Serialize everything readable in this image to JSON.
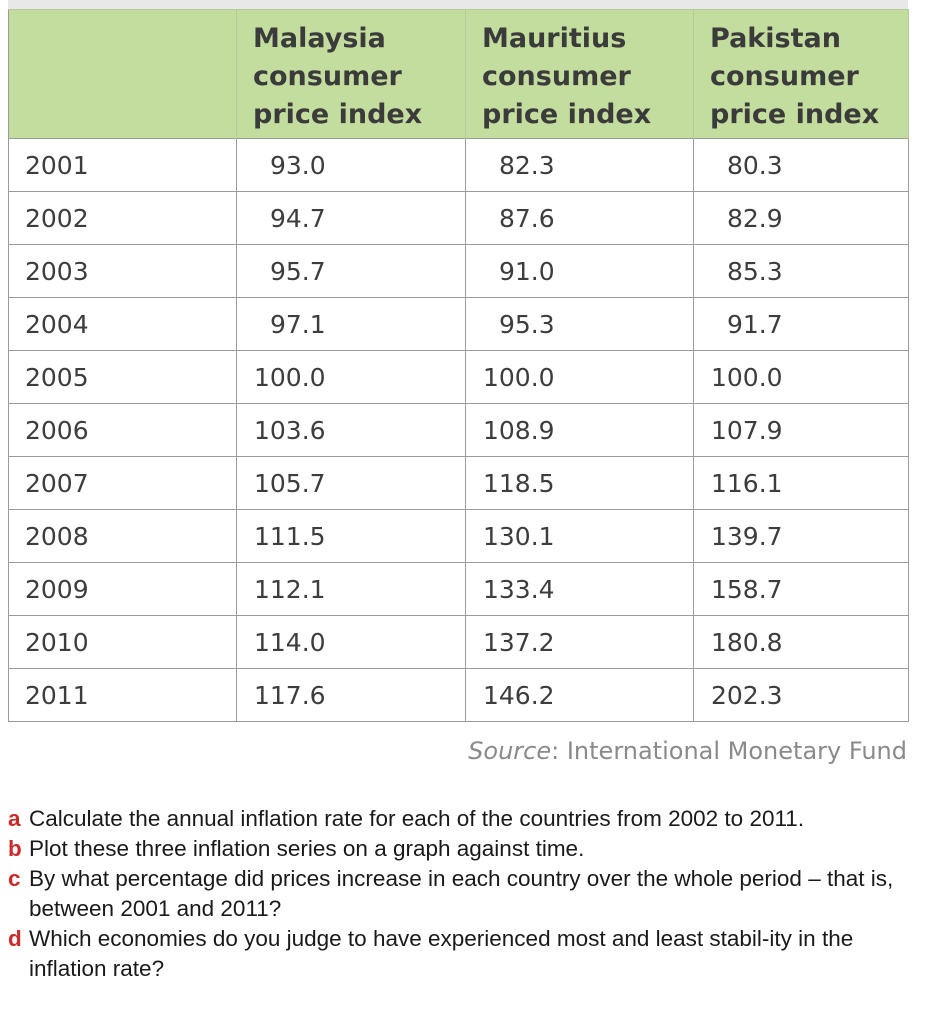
{
  "table": {
    "columns": [
      {
        "key": "year",
        "header_lines": []
      },
      {
        "key": "malaysia",
        "header_lines": [
          "Malaysia",
          "consumer",
          "price index"
        ]
      },
      {
        "key": "mauritius",
        "header_lines": [
          "Mauritius",
          "consumer",
          "price index"
        ]
      },
      {
        "key": "pakistan",
        "header_lines": [
          "Pakistan",
          "consumer",
          "price index"
        ]
      }
    ],
    "rows": [
      {
        "year": "2001",
        "malaysia": "93.0",
        "mauritius": "82.3",
        "pakistan": "80.3"
      },
      {
        "year": "2002",
        "malaysia": "94.7",
        "mauritius": "87.6",
        "pakistan": "82.9"
      },
      {
        "year": "2003",
        "malaysia": "95.7",
        "mauritius": "91.0",
        "pakistan": "85.3"
      },
      {
        "year": "2004",
        "malaysia": "97.1",
        "mauritius": "95.3",
        "pakistan": "91.7"
      },
      {
        "year": "2005",
        "malaysia": "100.0",
        "mauritius": "100.0",
        "pakistan": "100.0"
      },
      {
        "year": "2006",
        "malaysia": "103.6",
        "mauritius": "108.9",
        "pakistan": "107.9"
      },
      {
        "year": "2007",
        "malaysia": "105.7",
        "mauritius": "118.5",
        "pakistan": "116.1"
      },
      {
        "year": "2008",
        "malaysia": "111.5",
        "mauritius": "130.1",
        "pakistan": "139.7"
      },
      {
        "year": "2009",
        "malaysia": "112.1",
        "mauritius": "133.4",
        "pakistan": "158.7"
      },
      {
        "year": "2010",
        "malaysia": "114.0",
        "mauritius": "137.2",
        "pakistan": "180.8"
      },
      {
        "year": "2011",
        "malaysia": "117.6",
        "mauritius": "146.2",
        "pakistan": "202.3"
      }
    ]
  },
  "source": {
    "label": "Source",
    "text": ": International Monetary Fund"
  },
  "questions": [
    {
      "letter": "a",
      "text": "Calculate the annual inflation rate for each of the countries from 2002 to 2011."
    },
    {
      "letter": "b",
      "text": "Plot these three inflation series on a graph against time."
    },
    {
      "letter": "c",
      "text": "By what percentage did prices increase in each country over the whole period – that is, between 2001 and 2011?"
    },
    {
      "letter": "d",
      "text": "Which economies do you judge to have experienced most and least stabil-ity in the inflation rate?"
    }
  ],
  "colors": {
    "header_bg": "#c3dd9e",
    "question_letter": "#cc2a2a",
    "source_text": "#8a8a8a"
  }
}
